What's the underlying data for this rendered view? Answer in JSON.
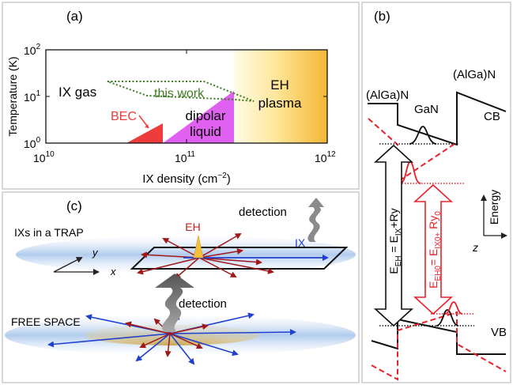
{
  "panels": {
    "a": {
      "label": "(a)",
      "ylabel": "Temperature (K)",
      "xlabel": "IX density (cm",
      "xlabel_sup": "−2",
      "xlabel_close": ")",
      "y_ticks": [
        {
          "base": "10",
          "exp": "2"
        },
        {
          "base": "10",
          "exp": "1"
        },
        {
          "base": "10",
          "exp": "0"
        }
      ],
      "x_ticks": [
        {
          "base": "10",
          "exp": "10"
        },
        {
          "base": "10",
          "exp": "11"
        },
        {
          "base": "10",
          "exp": "12"
        }
      ],
      "regions": {
        "ix_gas": "IX gas",
        "this_work": "this work",
        "eh_plasma_1": "EH",
        "eh_plasma_2": "plasma",
        "bec": "BEC",
        "dipolar_1": "dipolar",
        "dipolar_2": "liquid"
      }
    },
    "b": {
      "label": "(b)",
      "algan_left": "(AlGa)N",
      "algan_right": "(AlGa)N",
      "gan": "GaN",
      "cb": "CB",
      "vb": "VB",
      "energy": "Energy",
      "z_axis": "z",
      "eh_eq_main": "E",
      "eh_eq_sub1": "EH",
      "eh_eq_mid": " = E",
      "eh_eq_sub2": "IX",
      "eh_eq_end": "+Ry",
      "eh0_eq_main": "E",
      "eh0_eq_sub1": "EH0",
      "eh0_eq_mid": "= E",
      "eh0_eq_sub2": "IX0+",
      "eh0_eq_end": " Ry",
      "eh0_eq_sub3": "0"
    },
    "c": {
      "label": "(c)",
      "trap_label": "IXs in a TRAP",
      "eh": "EH",
      "ix": "IX",
      "detection_top": "detection",
      "detection_bottom": "detection",
      "free_space": "FREE SPACE",
      "axis_y": "y",
      "axis_x": "x"
    }
  },
  "colors": {
    "bec": "#ee3b3b",
    "dipolar": "#e060f0",
    "plasma_light": "#fff3c0",
    "plasma_dark": "#f5c040",
    "this_work": "#3c7a1e",
    "red_line": "#e8202a",
    "blue_arrow": "#1f3fd0",
    "darkred_arrow": "#a01818",
    "stack_gray": "#6c6c6c"
  }
}
